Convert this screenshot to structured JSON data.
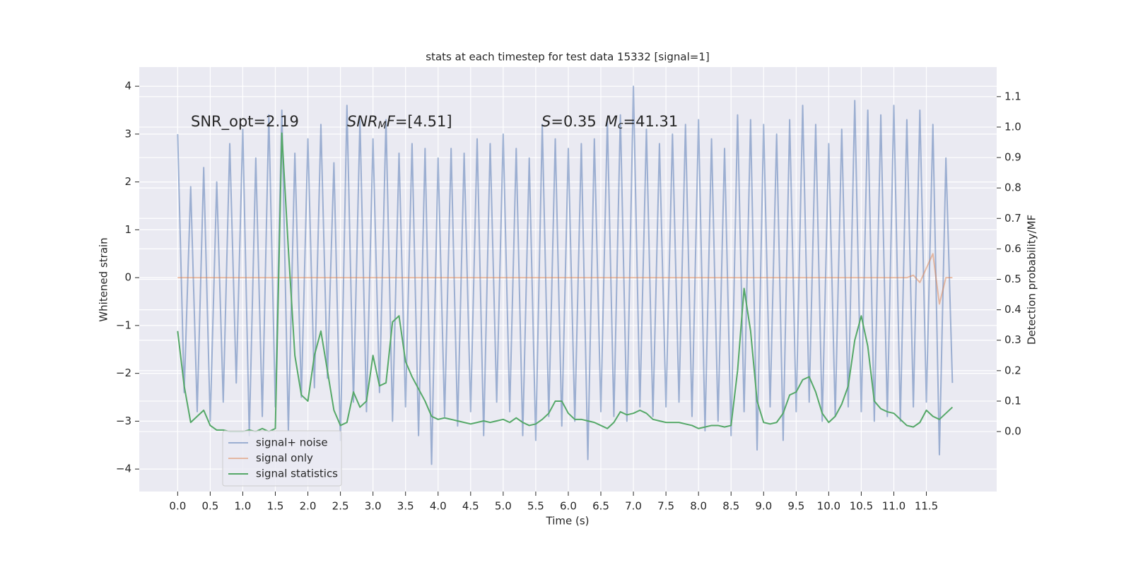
{
  "chart_data": {
    "type": "line",
    "title": "stats at each timestep for test data 15332 [signal=1]",
    "xlabel": "Time (s)",
    "ylabel": "Whitened strain",
    "y2label": "Detection probability/MF",
    "annotations": [
      {
        "parts": [
          {
            "text": "SNR_opt=2.19",
            "style": "normal"
          }
        ]
      },
      {
        "parts": [
          {
            "text": "SNR",
            "style": "italic"
          },
          {
            "text": "M",
            "style": "sub"
          },
          {
            "text": "F",
            "style": "italic"
          },
          {
            "text": "=[4.51]",
            "style": "normal"
          }
        ]
      },
      {
        "parts": [
          {
            "text": "S",
            "style": "italic"
          },
          {
            "text": "=0.35",
            "style": "normal"
          },
          {
            "text": "M",
            "style": "italic"
          },
          {
            "text": "c",
            "style": "sub"
          },
          {
            "text": "=41.31",
            "style": "normal"
          }
        ]
      }
    ],
    "x": [
      0,
      0.1,
      0.2,
      0.3,
      0.4,
      0.5,
      0.6,
      0.7,
      0.8,
      0.9,
      1,
      1.1,
      1.2,
      1.3,
      1.4,
      1.5,
      1.6,
      1.7,
      1.8,
      1.9,
      2,
      2.1,
      2.2,
      2.3,
      2.4,
      2.5,
      2.6,
      2.7,
      2.8,
      2.9,
      3,
      3.1,
      3.2,
      3.3,
      3.4,
      3.5,
      3.6,
      3.7,
      3.8,
      3.9,
      4,
      4.1,
      4.2,
      4.3,
      4.4,
      4.5,
      4.6,
      4.7,
      4.8,
      4.9,
      5,
      5.1,
      5.2,
      5.3,
      5.4,
      5.5,
      5.6,
      5.7,
      5.8,
      5.9,
      6,
      6.1,
      6.2,
      6.3,
      6.4,
      6.5,
      6.6,
      6.7,
      6.8,
      6.9,
      7,
      7.1,
      7.2,
      7.3,
      7.4,
      7.5,
      7.6,
      7.7,
      7.8,
      7.9,
      8,
      8.1,
      8.2,
      8.3,
      8.4,
      8.5,
      8.6,
      8.7,
      8.8,
      8.9,
      9,
      9.1,
      9.2,
      9.3,
      9.4,
      9.5,
      9.6,
      9.7,
      9.8,
      9.9,
      10,
      10.1,
      10.2,
      10.3,
      10.4,
      10.5,
      10.6,
      10.7,
      10.8,
      10.9,
      11,
      11.1,
      11.2,
      11.3,
      11.4,
      11.5,
      11.6,
      11.7,
      11.8,
      11.9
    ],
    "series": [
      {
        "name": "signal+ noise",
        "color": "#4c72b0",
        "alpha": 0.5,
        "axis": "y",
        "values": [
          3.0,
          -2.4,
          1.9,
          -2.8,
          2.3,
          -3.0,
          2.0,
          -2.6,
          2.8,
          -2.2,
          3.1,
          -3.3,
          2.5,
          -2.9,
          3.4,
          -2.7,
          3.5,
          -3.2,
          2.6,
          -2.5,
          2.9,
          -2.3,
          3.2,
          -2.1,
          2.4,
          -3.4,
          3.6,
          -2.6,
          3.3,
          -2.8,
          2.9,
          -2.4,
          3.3,
          -3.0,
          2.6,
          -2.7,
          2.8,
          -3.3,
          2.7,
          -3.9,
          2.5,
          -2.9,
          2.7,
          -3.1,
          2.6,
          -2.8,
          2.9,
          -3.3,
          2.8,
          -2.6,
          3.0,
          -2.8,
          2.7,
          -3.3,
          2.5,
          -3.4,
          3.2,
          -2.9,
          2.9,
          -3.1,
          2.7,
          -3.0,
          2.8,
          -3.8,
          2.9,
          -2.8,
          3.3,
          -2.9,
          3.4,
          -3.0,
          4.0,
          -2.7,
          3.1,
          -2.9,
          2.8,
          -2.7,
          3.0,
          -2.6,
          3.2,
          -2.9,
          3.3,
          -3.2,
          2.9,
          -3.0,
          2.7,
          -3.3,
          3.4,
          -2.8,
          3.3,
          -3.6,
          3.2,
          -2.7,
          3.0,
          -3.4,
          3.3,
          -2.8,
          3.6,
          -2.6,
          3.2,
          -3.0,
          2.8,
          -2.9,
          3.1,
          -2.7,
          3.7,
          -2.8,
          3.5,
          -3.0,
          3.4,
          -2.9,
          3.6,
          -3.0,
          3.3,
          -2.7,
          3.5,
          -2.6,
          3.2,
          -3.7,
          2.5,
          -2.2
        ]
      },
      {
        "name": "signal only",
        "color": "#dd8452",
        "alpha": 0.5,
        "axis": "y",
        "values": [
          0,
          0,
          0,
          0,
          0,
          0,
          0,
          0,
          0,
          0,
          0,
          0,
          0,
          0,
          0,
          0,
          0,
          0,
          0,
          0,
          0,
          0,
          0,
          0,
          0,
          0,
          0,
          0,
          0,
          0,
          0,
          0,
          0,
          0,
          0,
          0,
          0,
          0,
          0,
          0,
          0,
          0,
          0,
          0,
          0,
          0,
          0,
          0,
          0,
          0,
          0,
          0,
          0,
          0,
          0,
          0,
          0,
          0,
          0,
          0,
          0,
          0,
          0,
          0,
          0,
          0,
          0,
          0,
          0,
          0,
          0,
          0,
          0,
          0,
          0,
          0,
          0,
          0,
          0,
          0,
          0,
          0,
          0,
          0,
          0,
          0,
          0,
          0,
          0,
          0,
          0,
          0,
          0,
          0,
          0,
          0,
          0,
          0,
          0,
          0,
          0,
          0,
          0,
          0,
          0,
          0,
          0,
          0,
          0,
          0,
          0,
          0,
          0,
          0.05,
          -0.1,
          0.2,
          0.5,
          -0.55,
          0,
          0
        ]
      },
      {
        "name": "signal statistics",
        "color": "#55a868",
        "alpha": 1,
        "axis": "y2",
        "values": [
          0.33,
          0.15,
          0.03,
          0.05,
          0.07,
          0.02,
          0.005,
          0.005,
          0,
          0,
          0,
          0.005,
          0,
          0.01,
          0,
          0.01,
          0.98,
          0.6,
          0.25,
          0.12,
          0.1,
          0.25,
          0.33,
          0.2,
          0.07,
          0.02,
          0.03,
          0.13,
          0.08,
          0.1,
          0.25,
          0.15,
          0.16,
          0.36,
          0.38,
          0.23,
          0.18,
          0.14,
          0.1,
          0.05,
          0.04,
          0.045,
          0.04,
          0.035,
          0.03,
          0.025,
          0.03,
          0.035,
          0.03,
          0.035,
          0.04,
          0.03,
          0.045,
          0.03,
          0.02,
          0.025,
          0.04,
          0.06,
          0.1,
          0.1,
          0.06,
          0.04,
          0.04,
          0.035,
          0.03,
          0.02,
          0.01,
          0.03,
          0.065,
          0.055,
          0.06,
          0.07,
          0.06,
          0.04,
          0.035,
          0.03,
          0.03,
          0.03,
          0.025,
          0.02,
          0.01,
          0.015,
          0.02,
          0.02,
          0.015,
          0.02,
          0.2,
          0.47,
          0.33,
          0.1,
          0.03,
          0.025,
          0.03,
          0.06,
          0.12,
          0.13,
          0.17,
          0.18,
          0.13,
          0.06,
          0.03,
          0.05,
          0.09,
          0.15,
          0.3,
          0.38,
          0.28,
          0.1,
          0.075,
          0.065,
          0.06,
          0.04,
          0.02,
          0.015,
          0.03,
          0.07,
          0.05,
          0.04,
          0.06,
          0.08
        ]
      }
    ],
    "xlim": [
      -0.59,
      12.58
    ],
    "xticks": [
      {
        "value": 0,
        "label": "0.0"
      },
      0.5,
      {
        "value": 1,
        "label": "1.0"
      },
      1.5,
      {
        "value": 2,
        "label": "2.0"
      },
      2.5,
      {
        "value": 3,
        "label": "3.0"
      },
      3.5,
      {
        "value": 4,
        "label": "4.0"
      },
      4.5,
      {
        "value": 5,
        "label": "5.0"
      },
      5.5,
      {
        "value": 6,
        "label": "6.0"
      },
      6.5,
      {
        "value": 7,
        "label": "7.0"
      },
      7.5,
      {
        "value": 8,
        "label": "8.0"
      },
      8.5,
      {
        "value": 9,
        "label": "9.0"
      },
      9.5,
      {
        "value": 10,
        "label": "10.0"
      },
      10.5,
      {
        "value": 11,
        "label": "11.0"
      },
      11.5
    ],
    "ylim": [
      -4.47,
      4.4
    ],
    "yticks": [
      {
        "value": -4,
        "label": "−4"
      },
      {
        "value": -3,
        "label": "−3"
      },
      {
        "value": -2,
        "label": "−2"
      },
      {
        "value": -1,
        "label": "−1"
      },
      0,
      1,
      2,
      3,
      4
    ],
    "y2lim": [
      -0.197,
      1.197
    ],
    "y2ticks": [
      {
        "value": 0,
        "label": "0.0"
      },
      0.1,
      0.2,
      0.3,
      0.4,
      0.5,
      0.6,
      0.7,
      0.8,
      0.9,
      {
        "value": 1,
        "label": "1.0"
      },
      1.1
    ],
    "grid": true,
    "legend": "lower left"
  }
}
